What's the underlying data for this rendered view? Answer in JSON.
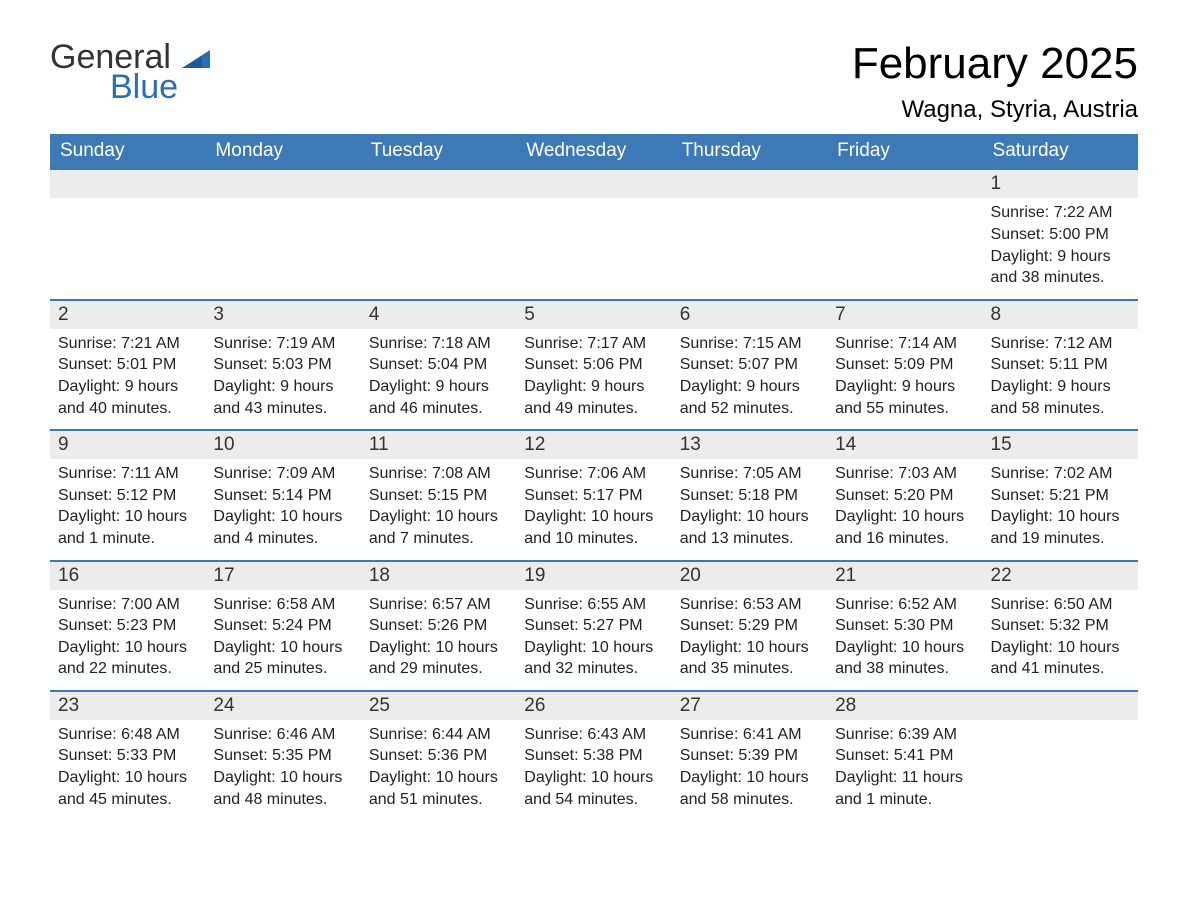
{
  "logo": {
    "word1": "General",
    "word2": "Blue"
  },
  "title": "February 2025",
  "location": "Wagna, Styria, Austria",
  "colors": {
    "header_blue": "#3d79b6",
    "day_bg": "#ececec",
    "logo_blue": "#2a6fb5",
    "text": "#222222"
  },
  "weekdays": [
    "Sunday",
    "Monday",
    "Tuesday",
    "Wednesday",
    "Thursday",
    "Friday",
    "Saturday"
  ],
  "labels": {
    "sunrise": "Sunrise:",
    "sunset": "Sunset:",
    "daylight": "Daylight:"
  },
  "weeks": [
    [
      null,
      null,
      null,
      null,
      null,
      null,
      {
        "n": "1",
        "sunrise": "7:22 AM",
        "sunset": "5:00 PM",
        "daylight": "9 hours and 38 minutes."
      }
    ],
    [
      {
        "n": "2",
        "sunrise": "7:21 AM",
        "sunset": "5:01 PM",
        "daylight": "9 hours and 40 minutes."
      },
      {
        "n": "3",
        "sunrise": "7:19 AM",
        "sunset": "5:03 PM",
        "daylight": "9 hours and 43 minutes."
      },
      {
        "n": "4",
        "sunrise": "7:18 AM",
        "sunset": "5:04 PM",
        "daylight": "9 hours and 46 minutes."
      },
      {
        "n": "5",
        "sunrise": "7:17 AM",
        "sunset": "5:06 PM",
        "daylight": "9 hours and 49 minutes."
      },
      {
        "n": "6",
        "sunrise": "7:15 AM",
        "sunset": "5:07 PM",
        "daylight": "9 hours and 52 minutes."
      },
      {
        "n": "7",
        "sunrise": "7:14 AM",
        "sunset": "5:09 PM",
        "daylight": "9 hours and 55 minutes."
      },
      {
        "n": "8",
        "sunrise": "7:12 AM",
        "sunset": "5:11 PM",
        "daylight": "9 hours and 58 minutes."
      }
    ],
    [
      {
        "n": "9",
        "sunrise": "7:11 AM",
        "sunset": "5:12 PM",
        "daylight": "10 hours and 1 minute."
      },
      {
        "n": "10",
        "sunrise": "7:09 AM",
        "sunset": "5:14 PM",
        "daylight": "10 hours and 4 minutes."
      },
      {
        "n": "11",
        "sunrise": "7:08 AM",
        "sunset": "5:15 PM",
        "daylight": "10 hours and 7 minutes."
      },
      {
        "n": "12",
        "sunrise": "7:06 AM",
        "sunset": "5:17 PM",
        "daylight": "10 hours and 10 minutes."
      },
      {
        "n": "13",
        "sunrise": "7:05 AM",
        "sunset": "5:18 PM",
        "daylight": "10 hours and 13 minutes."
      },
      {
        "n": "14",
        "sunrise": "7:03 AM",
        "sunset": "5:20 PM",
        "daylight": "10 hours and 16 minutes."
      },
      {
        "n": "15",
        "sunrise": "7:02 AM",
        "sunset": "5:21 PM",
        "daylight": "10 hours and 19 minutes."
      }
    ],
    [
      {
        "n": "16",
        "sunrise": "7:00 AM",
        "sunset": "5:23 PM",
        "daylight": "10 hours and 22 minutes."
      },
      {
        "n": "17",
        "sunrise": "6:58 AM",
        "sunset": "5:24 PM",
        "daylight": "10 hours and 25 minutes."
      },
      {
        "n": "18",
        "sunrise": "6:57 AM",
        "sunset": "5:26 PM",
        "daylight": "10 hours and 29 minutes."
      },
      {
        "n": "19",
        "sunrise": "6:55 AM",
        "sunset": "5:27 PM",
        "daylight": "10 hours and 32 minutes."
      },
      {
        "n": "20",
        "sunrise": "6:53 AM",
        "sunset": "5:29 PM",
        "daylight": "10 hours and 35 minutes."
      },
      {
        "n": "21",
        "sunrise": "6:52 AM",
        "sunset": "5:30 PM",
        "daylight": "10 hours and 38 minutes."
      },
      {
        "n": "22",
        "sunrise": "6:50 AM",
        "sunset": "5:32 PM",
        "daylight": "10 hours and 41 minutes."
      }
    ],
    [
      {
        "n": "23",
        "sunrise": "6:48 AM",
        "sunset": "5:33 PM",
        "daylight": "10 hours and 45 minutes."
      },
      {
        "n": "24",
        "sunrise": "6:46 AM",
        "sunset": "5:35 PM",
        "daylight": "10 hours and 48 minutes."
      },
      {
        "n": "25",
        "sunrise": "6:44 AM",
        "sunset": "5:36 PM",
        "daylight": "10 hours and 51 minutes."
      },
      {
        "n": "26",
        "sunrise": "6:43 AM",
        "sunset": "5:38 PM",
        "daylight": "10 hours and 54 minutes."
      },
      {
        "n": "27",
        "sunrise": "6:41 AM",
        "sunset": "5:39 PM",
        "daylight": "10 hours and 58 minutes."
      },
      {
        "n": "28",
        "sunrise": "6:39 AM",
        "sunset": "5:41 PM",
        "daylight": "11 hours and 1 minute."
      },
      null
    ]
  ]
}
